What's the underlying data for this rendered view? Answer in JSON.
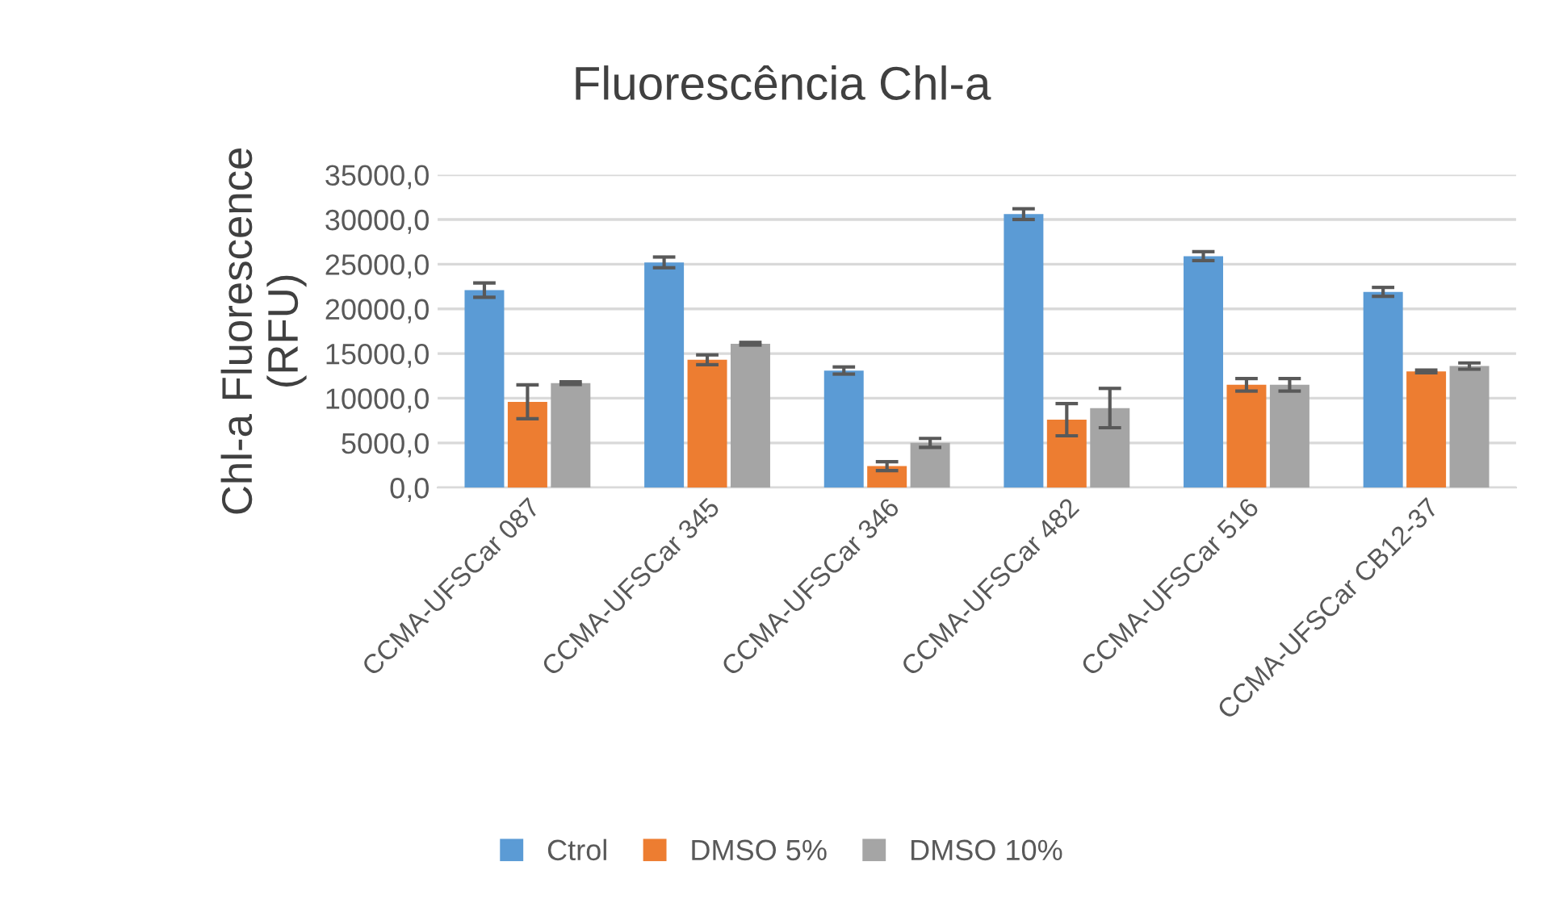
{
  "chart_data": {
    "type": "bar",
    "title": "Fluorescência Chl-a",
    "ylabel": "Chl-a Fluorescence\n(RFU)",
    "categories": [
      "CCMA-UFSCar 087",
      "CCMA-UFSCar 345",
      "CCMA-UFSCar 346",
      "CCMA-UFSCar 482",
      "CCMA-UFSCar 516",
      "CCMA-UFSCar CB12-37"
    ],
    "series": [
      {
        "name": "Ctrol",
        "color": "#5b9bd5",
        "values": [
          22100,
          25200,
          13100,
          30600,
          25900,
          21900
        ],
        "errors": [
          800,
          600,
          400,
          600,
          500,
          500
        ]
      },
      {
        "name": "DMSO 5%",
        "color": "#ed7d31",
        "values": [
          9600,
          14300,
          2400,
          7600,
          11500,
          13000
        ],
        "errors": [
          1900,
          550,
          500,
          1800,
          700,
          150
        ]
      },
      {
        "name": "DMSO 10%",
        "color": "#a5a5a5",
        "values": [
          11700,
          16100,
          5000,
          8900,
          11500,
          13600
        ],
        "errors": [
          150,
          150,
          500,
          2200,
          700,
          350
        ]
      }
    ],
    "ylim": [
      0,
      35000
    ],
    "yticks": [
      {
        "value": 0,
        "label": "0,0"
      },
      {
        "value": 5000,
        "label": "5000,0"
      },
      {
        "value": 10000,
        "label": "10000,0"
      },
      {
        "value": 15000,
        "label": "15000,0"
      },
      {
        "value": 20000,
        "label": "20000,0"
      },
      {
        "value": 25000,
        "label": "25000,0"
      },
      {
        "value": 30000,
        "label": "30000,0"
      },
      {
        "value": 35000,
        "label": "35000,0"
      }
    ],
    "grid": "y",
    "legend": "bottom"
  }
}
